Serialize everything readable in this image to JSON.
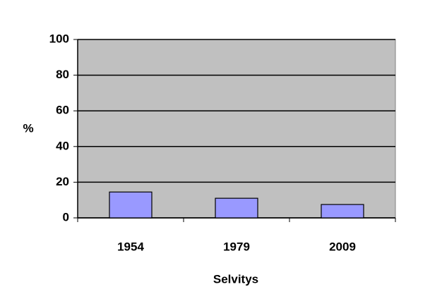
{
  "chart_data": {
    "type": "bar",
    "categories": [
      "1954",
      "1979",
      "2009"
    ],
    "values": [
      14.5,
      11,
      7.5
    ],
    "color": "#9999ff",
    "ylim": [
      0,
      100
    ],
    "yticks": [
      0,
      20,
      40,
      60,
      80,
      100
    ],
    "grid": true,
    "plot_background": "#c0c0c0",
    "ylabel": "%",
    "xlabel": "Selvitys"
  }
}
